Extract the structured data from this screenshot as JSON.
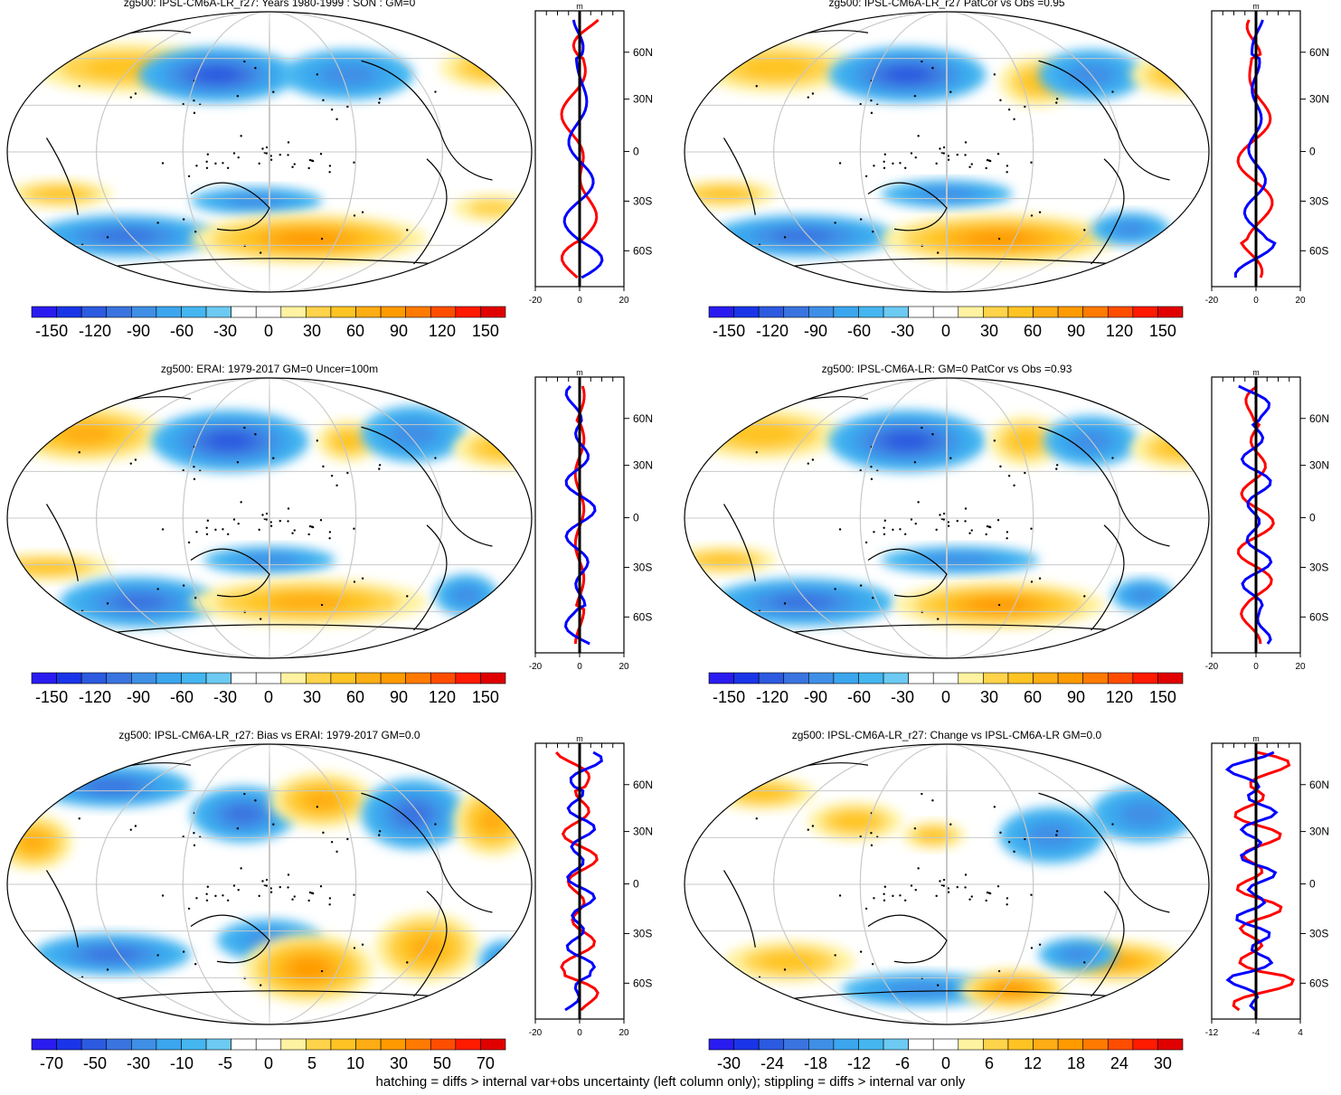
{
  "footer": "hatching = diffs > internal var+obs uncertainty (left column only); stippling = diffs > internal var only",
  "colors": {
    "palette": [
      "#2a1cf0",
      "#1a35e8",
      "#2c5ae0",
      "#3a74e0",
      "#3f8fe6",
      "#3ba6ee",
      "#45b6f0",
      "#6ccaf3",
      "#ffffff",
      "#ffffff",
      "#fff2a0",
      "#ffd34a",
      "#ffc423",
      "#ffad14",
      "#ff9b00",
      "#ff7a00",
      "#ff4d00",
      "#ff1a00",
      "#e00000"
    ],
    "zonal_model": "#ff0000",
    "zonal_obs": "#0000ff",
    "grid": "#c8c8c8"
  },
  "panels": [
    {
      "title": "zg500: IPSL-CM6A-LR_r27: Years 1980-1999 : SON : GM=0",
      "colorbar_labels": [
        "-150",
        "-120",
        "-90",
        "-60",
        "-30",
        "0",
        "30",
        "60",
        "90",
        "120",
        "150"
      ],
      "profile_unit": "m",
      "lat_labels": [
        "60N",
        "30N",
        "0",
        "30S",
        "60S"
      ],
      "profile_xticks": [
        "-20",
        "0",
        "20"
      ]
    },
    {
      "title": "zg500: IPSL-CM6A-LR_r27 PatCor vs Obs =0.95",
      "colorbar_labels": [
        "-150",
        "-120",
        "-90",
        "-60",
        "-30",
        "0",
        "30",
        "60",
        "90",
        "120",
        "150"
      ],
      "profile_unit": "m",
      "lat_labels": [
        "60N",
        "30N",
        "0",
        "30S",
        "60S"
      ],
      "profile_xticks": [
        "-20",
        "0",
        "20"
      ]
    },
    {
      "title": "zg500: ERAI: 1979-2017 GM=0 Uncer=100m",
      "colorbar_labels": [
        "-150",
        "-120",
        "-90",
        "-60",
        "-30",
        "0",
        "30",
        "60",
        "90",
        "120",
        "150"
      ],
      "profile_unit": "m",
      "lat_labels": [
        "60N",
        "30N",
        "0",
        "30S",
        "60S"
      ],
      "profile_xticks": [
        "-20",
        "0",
        "20"
      ]
    },
    {
      "title": "zg500: IPSL-CM6A-LR: GM=0 PatCor vs Obs =0.93",
      "colorbar_labels": [
        "-150",
        "-120",
        "-90",
        "-60",
        "-30",
        "0",
        "30",
        "60",
        "90",
        "120",
        "150"
      ],
      "profile_unit": "m",
      "lat_labels": [
        "60N",
        "30N",
        "0",
        "30S",
        "60S"
      ],
      "profile_xticks": [
        "-20",
        "0",
        "20"
      ]
    },
    {
      "title": "zg500: IPSL-CM6A-LR_r27: Bias vs ERAI: 1979-2017  GM=0.0",
      "colorbar_labels": [
        "-70",
        "-50",
        "-30",
        "-10",
        "-5",
        "0",
        "5",
        "10",
        "30",
        "50",
        "70"
      ],
      "profile_unit": "m",
      "lat_labels": [
        "60N",
        "30N",
        "0",
        "30S",
        "60S"
      ],
      "profile_xticks": [
        "-20",
        "0",
        "20"
      ]
    },
    {
      "title": "zg500: IPSL-CM6A-LR_r27: Change vs IPSL-CM6A-LR GM=0.0",
      "colorbar_labels": [
        "-30",
        "-24",
        "-18",
        "-12",
        "-6",
        "0",
        "6",
        "12",
        "18",
        "24",
        "30"
      ],
      "profile_unit": "m",
      "lat_labels": [
        "60N",
        "30N",
        "0",
        "30S",
        "60S"
      ],
      "profile_xticks": [
        "-12",
        "-4",
        "4"
      ]
    }
  ]
}
